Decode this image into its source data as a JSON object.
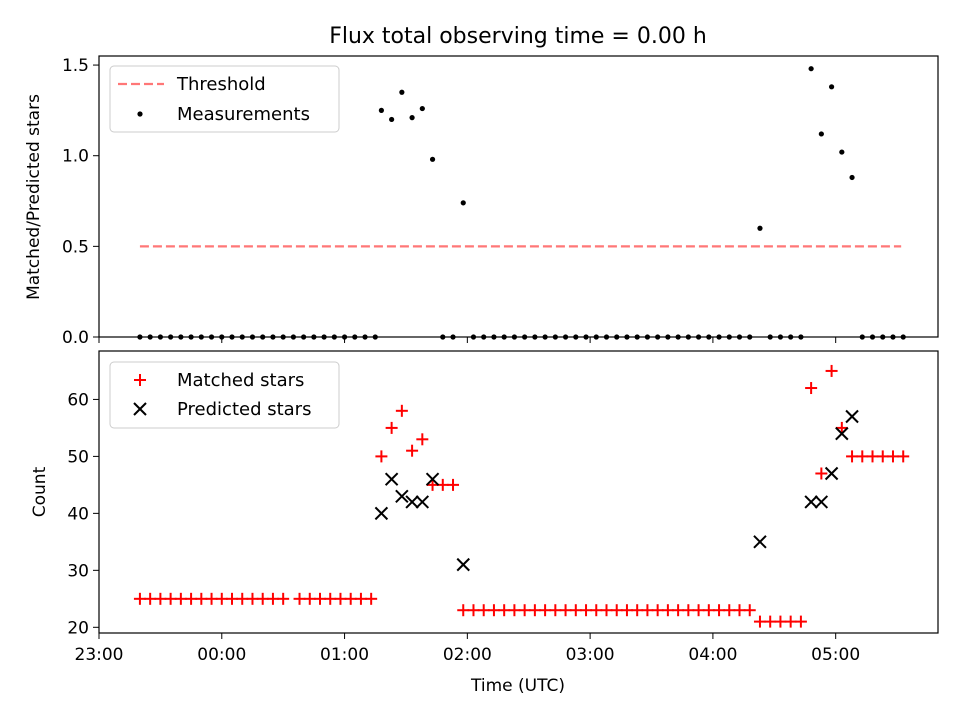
{
  "title": "Flux total observing time = 0.00 h",
  "colors": {
    "threshold": "#ff7777",
    "matched": "#ff0000",
    "predicted": "#000000",
    "measurement": "#000000"
  },
  "chart_data": [
    {
      "type": "scatter",
      "ylabel": "Matched/Predicted stars",
      "xlabel": "",
      "ylim": [
        0,
        1.55
      ],
      "yticks": [
        "0.0",
        "0.5",
        "1.0",
        "1.5"
      ],
      "legend_position": "top-left",
      "threshold": {
        "name": "Threshold",
        "value": 0.5,
        "x_start": "23:20",
        "x_end": "05:32"
      },
      "series": [
        {
          "name": "Measurements",
          "x": [
            "23:20",
            "23:25",
            "23:30",
            "23:35",
            "23:40",
            "23:45",
            "23:50",
            "23:55",
            "00:00",
            "00:05",
            "00:10",
            "00:15",
            "00:20",
            "00:25",
            "00:30",
            "00:35",
            "00:40",
            "00:45",
            "00:50",
            "00:55",
            "01:00",
            "01:05",
            "01:10",
            "01:15",
            "01:18",
            "01:23",
            "01:28",
            "01:33",
            "01:38",
            "01:43",
            "01:48",
            "01:53",
            "01:58",
            "02:03",
            "02:08",
            "02:13",
            "02:18",
            "02:23",
            "02:28",
            "02:33",
            "02:38",
            "02:43",
            "02:48",
            "02:53",
            "02:58",
            "03:03",
            "03:08",
            "03:13",
            "03:18",
            "03:23",
            "03:28",
            "03:33",
            "03:38",
            "03:43",
            "03:48",
            "03:53",
            "03:58",
            "04:03",
            "04:08",
            "04:13",
            "04:18",
            "04:23",
            "04:28",
            "04:33",
            "04:38",
            "04:43",
            "04:48",
            "04:53",
            "04:58",
            "05:03",
            "05:08",
            "05:13",
            "05:18",
            "05:23",
            "05:28",
            "05:33"
          ],
          "y": [
            0,
            0,
            0,
            0,
            0,
            0,
            0,
            0,
            0,
            0,
            0,
            0,
            0,
            0,
            0,
            0,
            0,
            0,
            0,
            0,
            0,
            0,
            0,
            0,
            1.25,
            1.2,
            1.35,
            1.21,
            1.26,
            0.98,
            0,
            0,
            0.74,
            0,
            0,
            0,
            0,
            0,
            0,
            0,
            0,
            0,
            0,
            0,
            0,
            0,
            0,
            0,
            0,
            0,
            0,
            0,
            0,
            0,
            0,
            0,
            0,
            0,
            0,
            0,
            0,
            0.6,
            0,
            0,
            0,
            0,
            1.48,
            1.12,
            1.38,
            1.02,
            0.88,
            0,
            0,
            0,
            0,
            0
          ]
        }
      ]
    },
    {
      "type": "scatter",
      "ylabel": "Count",
      "xlabel": "Time (UTC)",
      "ylim": [
        19,
        68.5
      ],
      "yticks": [
        "20",
        "30",
        "40",
        "50",
        "60"
      ],
      "xticks": [
        "23:00",
        "00:00",
        "01:00",
        "02:00",
        "03:00",
        "04:00",
        "05:00"
      ],
      "legend_position": "top-left",
      "series": [
        {
          "name": "Matched stars",
          "marker": "plus",
          "x": [
            "23:20",
            "23:25",
            "23:30",
            "23:35",
            "23:40",
            "23:45",
            "23:50",
            "23:55",
            "00:00",
            "00:05",
            "00:10",
            "00:15",
            "00:20",
            "00:25",
            "00:30",
            "00:38",
            "00:43",
            "00:48",
            "00:53",
            "00:58",
            "01:03",
            "01:08",
            "01:13",
            "01:18",
            "01:23",
            "01:28",
            "01:33",
            "01:38",
            "01:43",
            "01:48",
            "01:53",
            "01:58",
            "02:03",
            "02:08",
            "02:13",
            "02:18",
            "02:23",
            "02:28",
            "02:33",
            "02:38",
            "02:43",
            "02:48",
            "02:53",
            "02:58",
            "03:03",
            "03:08",
            "03:13",
            "03:18",
            "03:23",
            "03:28",
            "03:33",
            "03:38",
            "03:43",
            "03:48",
            "03:53",
            "03:58",
            "04:03",
            "04:08",
            "04:13",
            "04:18",
            "04:23",
            "04:28",
            "04:33",
            "04:38",
            "04:43",
            "04:48",
            "04:53",
            "04:58",
            "05:03",
            "05:08",
            "05:13",
            "05:18",
            "05:23",
            "05:28",
            "05:33"
          ],
          "y": [
            25,
            25,
            25,
            25,
            25,
            25,
            25,
            25,
            25,
            25,
            25,
            25,
            25,
            25,
            25,
            25,
            25,
            25,
            25,
            25,
            25,
            25,
            25,
            50,
            55,
            58,
            51,
            53,
            45,
            45,
            45,
            23,
            23,
            23,
            23,
            23,
            23,
            23,
            23,
            23,
            23,
            23,
            23,
            23,
            23,
            23,
            23,
            23,
            23,
            23,
            23,
            23,
            23,
            23,
            23,
            23,
            23,
            23,
            23,
            23,
            21,
            21,
            21,
            21,
            21,
            62,
            47,
            65,
            55,
            50,
            50,
            50,
            50,
            50,
            50
          ]
        },
        {
          "name": "Predicted stars",
          "marker": "x",
          "x": [
            "01:18",
            "01:23",
            "01:28",
            "01:33",
            "01:38",
            "01:43",
            "01:58",
            "04:23",
            "04:48",
            "04:53",
            "04:58",
            "05:03",
            "05:08"
          ],
          "y": [
            40,
            46,
            43,
            42,
            42,
            46,
            31,
            35,
            42,
            42,
            47,
            54,
            57
          ]
        }
      ]
    }
  ]
}
